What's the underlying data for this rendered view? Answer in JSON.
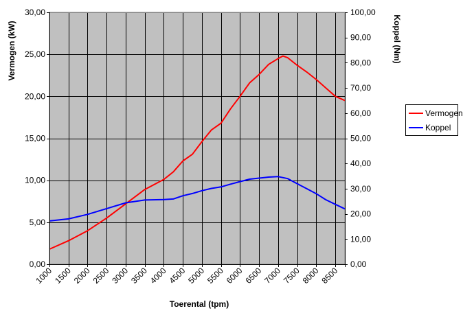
{
  "chart_data": {
    "type": "line",
    "xlabel": "Toerental (tpm)",
    "ylabel_left": "Vermogen (kW)",
    "ylabel_right": "Koppel (Nm)",
    "ylim_left": [
      0,
      30
    ],
    "ylim_right": [
      0,
      100
    ],
    "xlim": [
      1000,
      8750
    ],
    "grid": true,
    "plot_background": "#c0c0c0",
    "legend_position": "right",
    "x_ticks": [
      "1000",
      "1500",
      "2000",
      "2500",
      "3000",
      "3500",
      "4000",
      "4500",
      "5000",
      "5500",
      "6000",
      "6500",
      "7000",
      "7500",
      "8000",
      "8500"
    ],
    "y_left_ticks": [
      "0,00",
      "5,00",
      "10,00",
      "15,00",
      "20,00",
      "25,00",
      "30,00"
    ],
    "y_right_ticks": [
      "0,00",
      "10,00",
      "20,00",
      "30,00",
      "40,00",
      "50,00",
      "60,00",
      "70,00",
      "80,00",
      "90,00",
      "100,00"
    ],
    "series": [
      {
        "name": "Vermogen",
        "axis": "left",
        "color": "#ff0000",
        "x": [
          1000,
          1500,
          2000,
          2500,
          3000,
          3500,
          4000,
          4250,
          4500,
          4750,
          5000,
          5250,
          5500,
          5750,
          6000,
          6250,
          6500,
          6750,
          7000,
          7125,
          7250,
          7500,
          7750,
          8000,
          8250,
          8500,
          8750
        ],
        "values": [
          1.8,
          2.8,
          4.0,
          5.5,
          7.2,
          8.9,
          10.1,
          11.0,
          12.3,
          13.1,
          14.6,
          16.0,
          16.8,
          18.5,
          20.0,
          21.6,
          22.6,
          23.8,
          24.5,
          24.8,
          24.6,
          23.7,
          22.9,
          22.0,
          21.0,
          20.0,
          19.5
        ]
      },
      {
        "name": "Koppel",
        "axis": "right",
        "color": "#0000ff",
        "x": [
          1000,
          1500,
          2000,
          2500,
          3000,
          3500,
          4000,
          4250,
          4500,
          4750,
          5000,
          5250,
          5500,
          5750,
          6000,
          6250,
          6500,
          6750,
          7000,
          7250,
          7500,
          7750,
          8000,
          8250,
          8500,
          8750
        ],
        "values": [
          17.2,
          18.0,
          19.8,
          22.1,
          24.4,
          25.5,
          25.7,
          25.9,
          27.2,
          28.1,
          29.2,
          30.1,
          30.7,
          31.8,
          32.8,
          33.8,
          34.2,
          34.6,
          34.8,
          34.0,
          32.0,
          30.0,
          28.0,
          25.6,
          23.8,
          22.0
        ]
      }
    ]
  }
}
